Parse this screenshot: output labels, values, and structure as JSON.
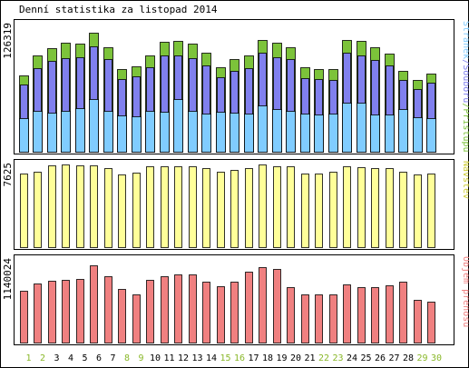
{
  "chart_data": {
    "type": "bar",
    "title": "Denní statistika za listopad 2014",
    "categories": [
      "1",
      "2",
      "3",
      "4",
      "5",
      "6",
      "7",
      "8",
      "9",
      "10",
      "11",
      "12",
      "13",
      "14",
      "15",
      "16",
      "17",
      "18",
      "19",
      "20",
      "21",
      "22",
      "23",
      "24",
      "25",
      "26",
      "27",
      "28",
      "29",
      "30"
    ],
    "weekend_categories": [
      "1",
      "2",
      "8",
      "9",
      "15",
      "16",
      "22",
      "23",
      "29",
      "30"
    ],
    "colors": {
      "pristupu": "#7cc33a",
      "souboru": "#8080ee",
      "stranek": "#80ccff",
      "navstev": "#ffff99",
      "objem": "#f08080",
      "weekday_label": "#000000",
      "weekend_label": "#8ab82a"
    },
    "panels": [
      {
        "id": "top",
        "max_label": "126319",
        "side_label_parts": [
          {
            "text": "Stránek",
            "color": "#80ccff"
          },
          {
            "text": "/",
            "color": "#8080ee"
          },
          {
            "text": "Souborů",
            "color": "#8080ee"
          },
          {
            "text": "/",
            "color": "#7cc33a"
          },
          {
            "text": "Přístupů",
            "color": "#7cc33a"
          }
        ],
        "ylim": [
          0,
          126319
        ],
        "series": [
          {
            "name": "Přístupů",
            "values": [
              76000,
              96000,
              103000,
              108000,
              107000,
              118000,
              104000,
              82000,
              85000,
              96000,
              109000,
              110000,
              107000,
              98000,
              84000,
              92000,
              96000,
              111000,
              108000,
              104000,
              84000,
              82000,
              82000,
              111000,
              110000,
              104000,
              97000,
              80000,
              71000,
              78000
            ]
          },
          {
            "name": "Souborů",
            "values": [
              67000,
              83000,
              90000,
              93000,
              94000,
              105000,
              92000,
              72000,
              75000,
              84000,
              96000,
              96000,
              93000,
              86000,
              74000,
              80000,
              83000,
              98000,
              94000,
              92000,
              73000,
              72000,
              71000,
              98000,
              96000,
              91000,
              86000,
              71000,
              62000,
              69000
            ]
          },
          {
            "name": "Stránek",
            "values": [
              33000,
              41000,
              39000,
              41000,
              43000,
              52000,
              41000,
              36000,
              35000,
              41000,
              40000,
              52000,
              41000,
              38000,
              40000,
              39000,
              38000,
              46000,
              42000,
              41000,
              38000,
              37000,
              38000,
              49000,
              49000,
              37000,
              37000,
              42000,
              34000,
              33000
            ]
          }
        ]
      },
      {
        "id": "middle",
        "max_label": "7625",
        "side_label_parts": [
          {
            "text": "Návštěv",
            "color": "#cccc33"
          }
        ],
        "ylim": [
          0,
          7625
        ],
        "series": [
          {
            "name": "Návštěv",
            "values": [
              6750,
              6980,
              7560,
              7600,
              7580,
              7570,
              7330,
              6720,
              6850,
              7420,
              7430,
              7480,
              7470,
              7310,
              6960,
              7120,
              7290,
              7600,
              7490,
              7430,
              6810,
              6760,
              6990,
              7470,
              7380,
              7320,
              7290,
              6930,
              6710,
              6780
            ]
          }
        ]
      },
      {
        "id": "bottom",
        "max_label": "1140024",
        "side_label_parts": [
          {
            "text": "Objem přenosu",
            "color": "#f08080"
          }
        ],
        "ylim": [
          0,
          1140024
        ],
        "series": [
          {
            "name": "Objem přenosu",
            "values": [
              710000,
              820000,
              850000,
              860000,
              880000,
              1060000,
              920000,
              740000,
              670000,
              860000,
              920000,
              940000,
              940000,
              840000,
              780000,
              840000,
              980000,
              1040000,
              1020000,
              770000,
              660000,
              660000,
              670000,
              800000,
              770000,
              770000,
              790000,
              840000,
              590000,
              570000
            ]
          }
        ]
      }
    ]
  }
}
